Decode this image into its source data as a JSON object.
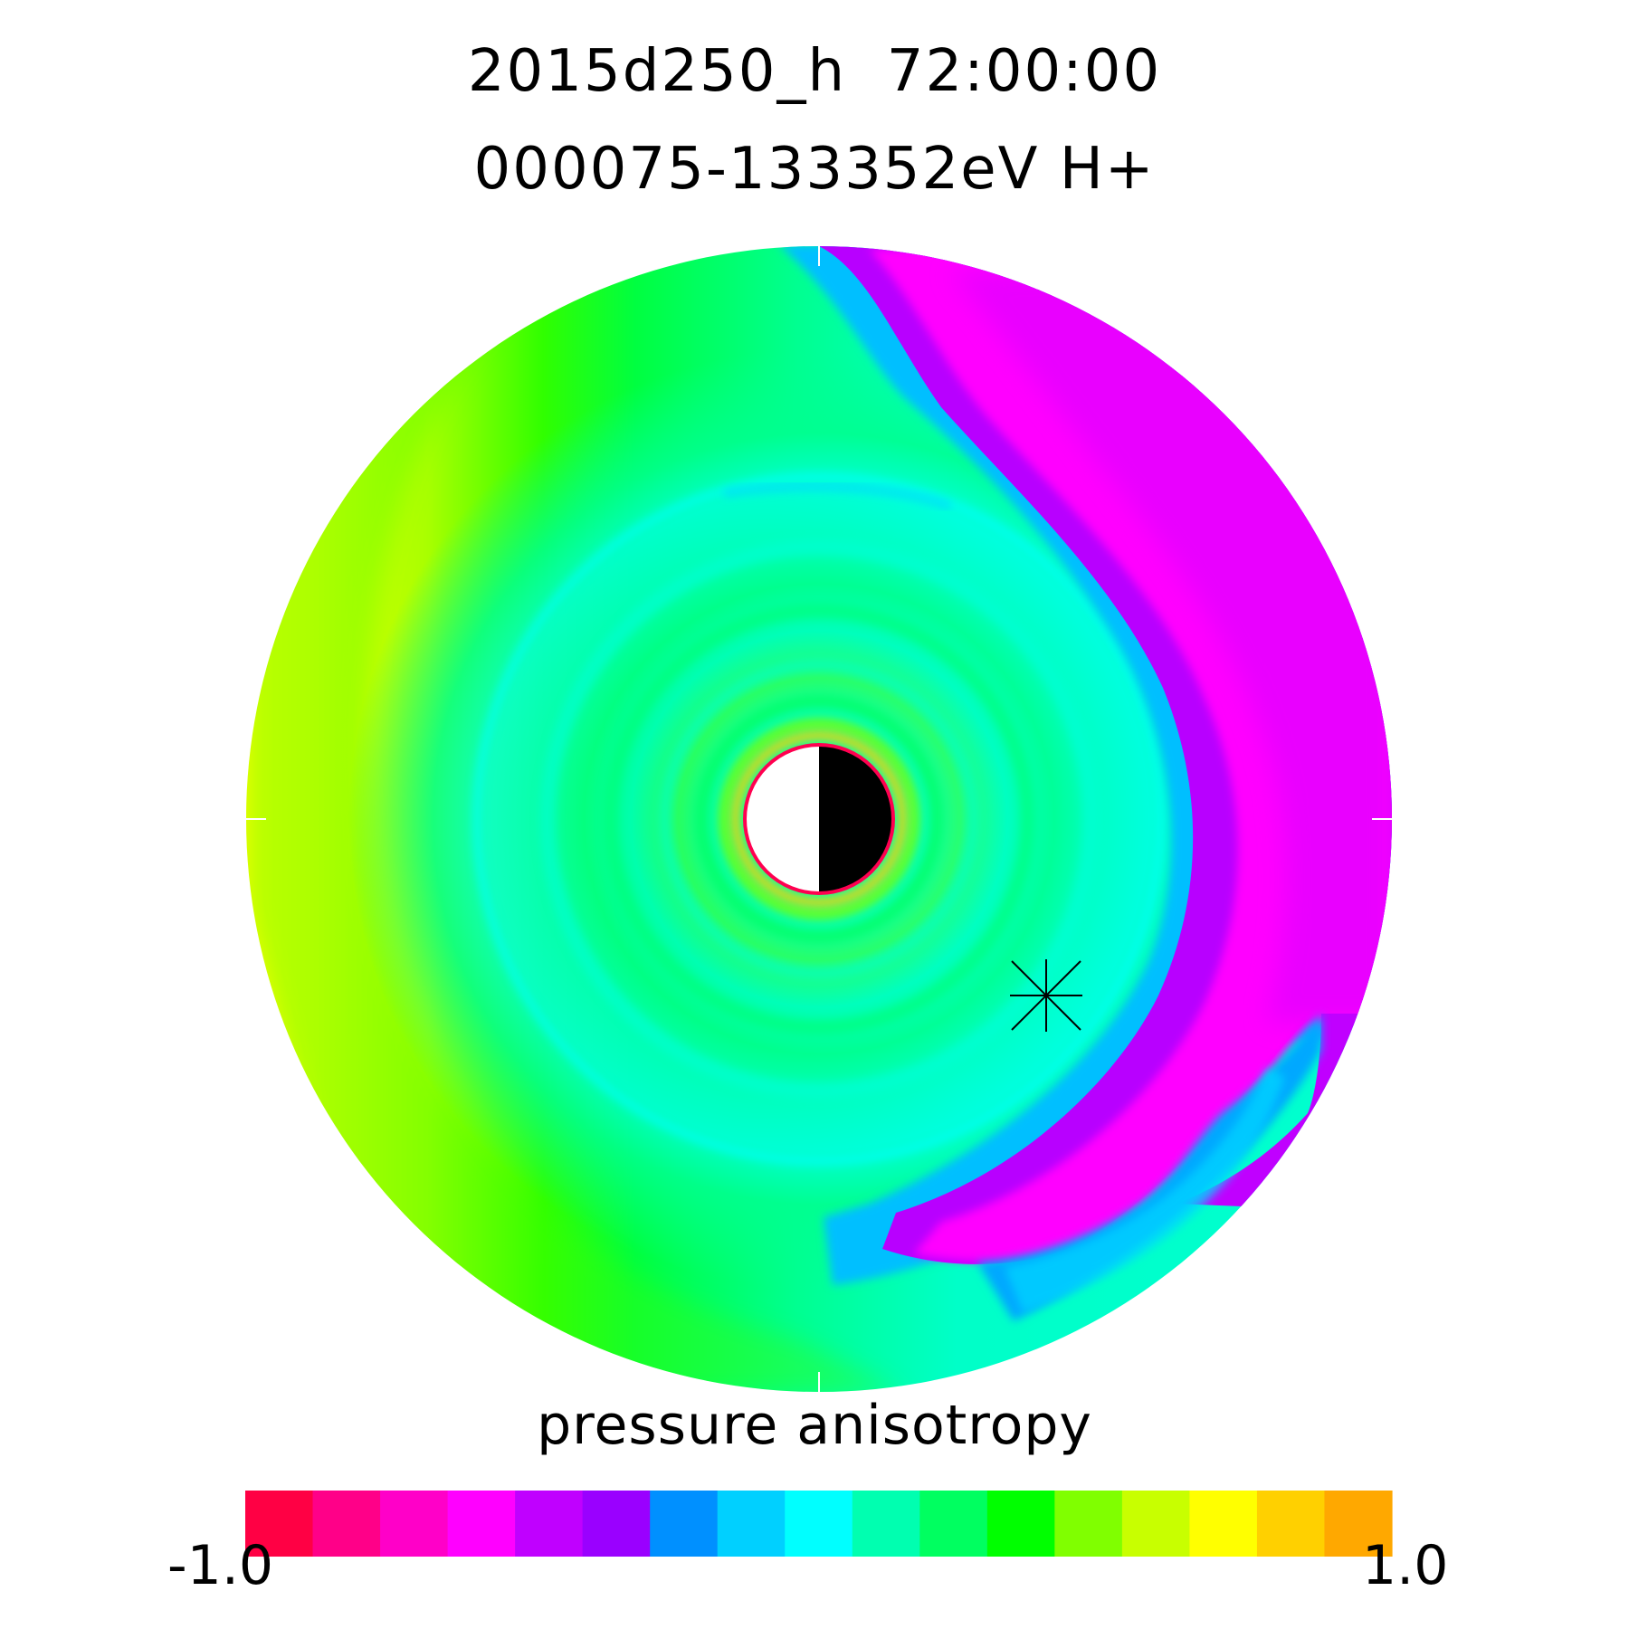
{
  "title_line_1": "2015d250_h  72:00:00",
  "title_line_2": "000075-133352eV H+",
  "chart_data": {
    "type": "heatmap",
    "projection": "polar equatorial plane (dusk left, dawn right)",
    "quantity": "pressure anisotropy",
    "colorbar": {
      "label": "pressure anisotropy",
      "min_label": "-1.0",
      "max_label": "1.0",
      "range": [
        -1.0,
        1.0
      ],
      "colors": [
        "#ff0044",
        "#ff0088",
        "#ff00c8",
        "#ff00ff",
        "#c000ff",
        "#9a00ff",
        "#0090ff",
        "#00d0ff",
        "#00ffff",
        "#00ffb0",
        "#00ff60",
        "#00ff00",
        "#80ff00",
        "#c8ff00",
        "#ffff00",
        "#ffd000",
        "#ffa800"
      ]
    },
    "regions": [
      {
        "name": "dusk outer",
        "value": 0.75
      },
      {
        "name": "inner ring",
        "value": 0.3
      },
      {
        "name": "dawn arc",
        "value": -0.4
      },
      {
        "name": "dawn-midnight patch",
        "value": -0.05
      }
    ],
    "earth": {
      "dayside": "left",
      "nightside": "right"
    },
    "marker": {
      "symbol": "asterisk",
      "position": "dawn-midnight sector"
    }
  }
}
